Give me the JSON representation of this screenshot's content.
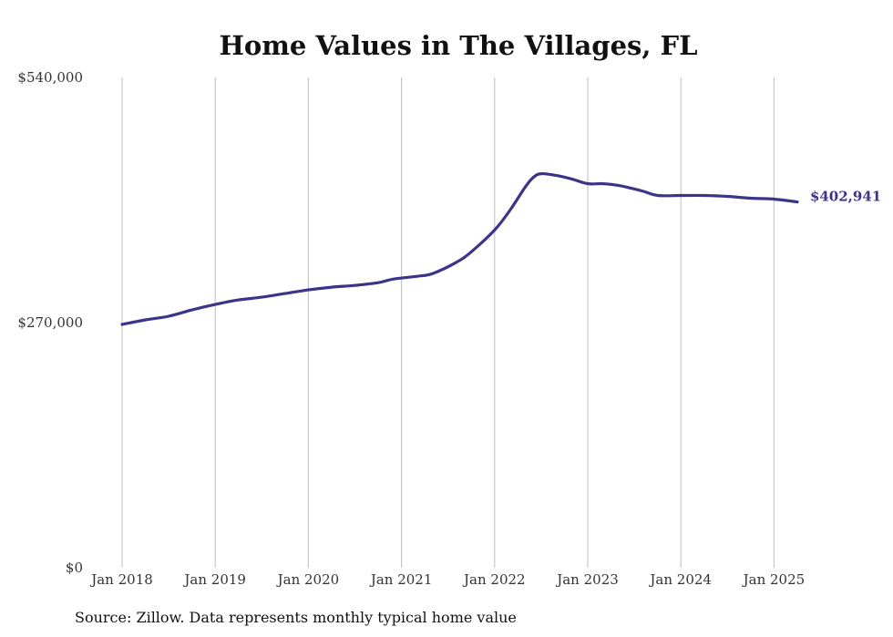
{
  "chart_data": {
    "type": "line",
    "title": "Home Values in The Villages, FL",
    "source": "Source: Zillow. Data represents monthly typical home value",
    "xlabel": "",
    "ylabel": "",
    "ylim": [
      0,
      540000
    ],
    "y_ticks": [
      0,
      270000,
      540000
    ],
    "y_tick_labels": [
      "$0",
      "$270,000",
      "$540,000"
    ],
    "x_range": [
      "2018-01",
      "2025-04"
    ],
    "x_ticks": [
      "2018-01",
      "2019-01",
      "2020-01",
      "2021-01",
      "2022-01",
      "2023-01",
      "2024-01",
      "2025-01"
    ],
    "x_tick_labels": [
      "Jan 2018",
      "Jan 2019",
      "Jan 2020",
      "Jan 2021",
      "Jan 2022",
      "Jan 2023",
      "Jan 2024",
      "Jan 2025"
    ],
    "grid": "vertical",
    "line_color": "#3b3489",
    "end_label": "$402,941",
    "series": [
      {
        "x": [
          "2018-01",
          "2018-04",
          "2018-07",
          "2018-10",
          "2019-01",
          "2019-04",
          "2019-07",
          "2019-10",
          "2020-01",
          "2020-04",
          "2020-07",
          "2020-10",
          "2020-12",
          "2021-03",
          "2021-05",
          "2021-08",
          "2021-10",
          "2022-01",
          "2022-03",
          "2022-05",
          "2022-06",
          "2022-07",
          "2022-09",
          "2022-11",
          "2023-01",
          "2023-03",
          "2023-05",
          "2023-08",
          "2023-10",
          "2024-01",
          "2024-04",
          "2024-07",
          "2024-10",
          "2025-01",
          "2025-04"
        ],
        "values": [
          268000,
          273000,
          277000,
          284000,
          290000,
          295000,
          298000,
          302000,
          306000,
          309000,
          311000,
          314000,
          318000,
          321000,
          324000,
          336000,
          348000,
          372000,
          394000,
          420000,
          430000,
          434000,
          432000,
          428000,
          423000,
          423000,
          421000,
          415000,
          410000,
          410000,
          410000,
          409000,
          407000,
          406000,
          402941
        ]
      }
    ]
  }
}
